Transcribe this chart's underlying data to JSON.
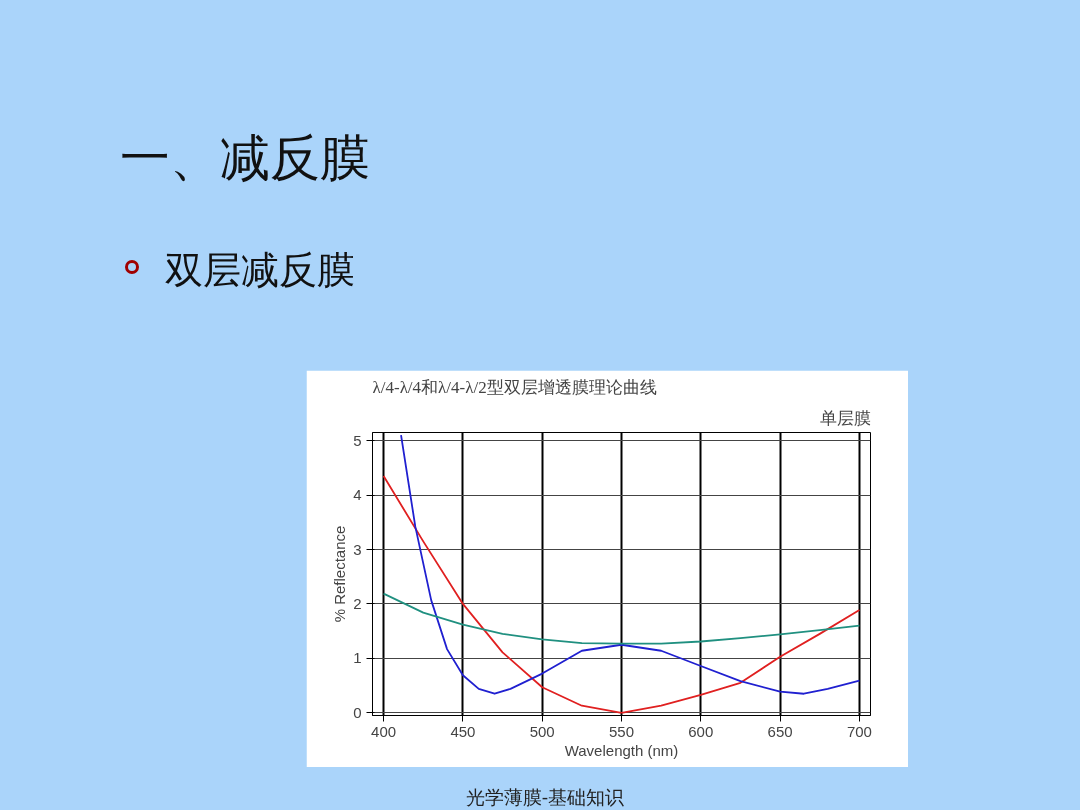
{
  "chart_data": {
    "type": "line",
    "title": "λ/4-λ/4和λ/4-λ/2型双层增透膜理论曲线",
    "xlabel": "Wavelength (nm)",
    "ylabel": "% Reflectance",
    "annotations": [
      "一、减反膜",
      "双层减反膜",
      "单层膜",
      "光学薄膜-基础知识"
    ],
    "xlim": [
      393,
      707
    ],
    "ylim": [
      -0.05,
      5.15
    ],
    "xticks": [
      400,
      450,
      500,
      550,
      600,
      650,
      700
    ],
    "yticks": [
      0,
      1,
      2,
      3,
      4,
      5
    ],
    "grid": true,
    "series": [
      {
        "color": "#e02020",
        "x": [
          400,
          425,
          450,
          475,
          500,
          525,
          550,
          575,
          600,
          625,
          650,
          675,
          700
        ],
        "values": [
          4.35,
          3.15,
          2.0,
          1.11,
          0.47,
          0.13,
          0,
          0.13,
          0.33,
          0.55,
          1.03,
          1.45,
          1.89
        ]
      },
      {
        "color": "#2020d0",
        "x": [
          411,
          420,
          430,
          440,
          450,
          460,
          470,
          480,
          500,
          525,
          550,
          575,
          600,
          625,
          650,
          665,
          680,
          700
        ],
        "values": [
          5.1,
          3.42,
          2.07,
          1.17,
          0.69,
          0.44,
          0.35,
          0.44,
          0.72,
          1.14,
          1.25,
          1.14,
          0.86,
          0.58,
          0.39,
          0.35,
          0.44,
          0.59
        ]
      },
      {
        "color": "#209080",
        "x": [
          400,
          425,
          450,
          475,
          500,
          525,
          550,
          575,
          600,
          625,
          650,
          675,
          700
        ],
        "values": [
          2.19,
          1.84,
          1.62,
          1.45,
          1.35,
          1.28,
          1.27,
          1.27,
          1.31,
          1.37,
          1.44,
          1.52,
          1.6
        ]
      }
    ]
  }
}
